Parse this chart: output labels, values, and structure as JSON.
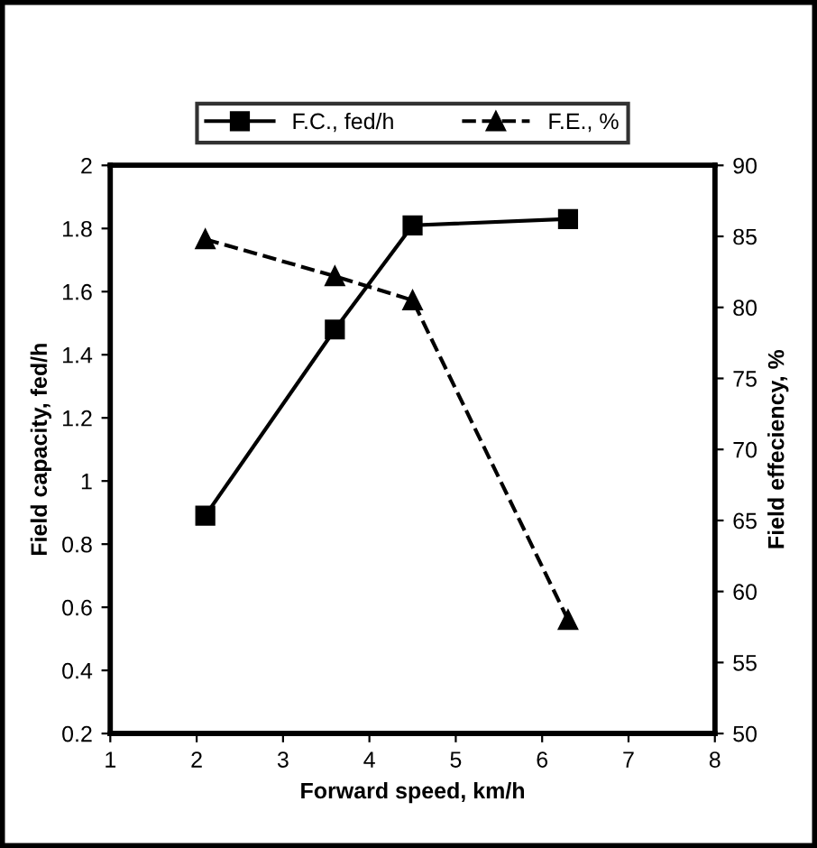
{
  "chart_data": {
    "type": "line",
    "xlabel": "Forward speed, km/h",
    "ylabel": "Field capacity, fed/h",
    "y2label": "Field effeciency, %",
    "x": [
      2.1,
      3.6,
      4.5,
      6.3
    ],
    "series": [
      {
        "name": "F.C., fed/h",
        "color": "#000000",
        "values": [
          0.89,
          1.48,
          1.81,
          1.83
        ],
        "marker": "square",
        "line_style": "solid"
      },
      {
        "name": "F.E., %",
        "color": "#000000",
        "values": [
          84.8,
          82.2,
          80.5,
          58.0
        ],
        "marker": "triangle",
        "line_style": "dashed",
        "axis": "y2"
      }
    ],
    "xlim": [
      1,
      8
    ],
    "xticks": [
      1,
      2,
      3,
      4,
      5,
      6,
      7,
      8
    ],
    "ylim": [
      0.2,
      2
    ],
    "yticks": [
      0.2,
      0.4,
      0.6,
      0.8,
      1,
      1.2,
      1.4,
      1.6,
      1.8,
      2
    ],
    "y2lim": [
      50,
      90
    ],
    "y2ticks": [
      50,
      55,
      60,
      65,
      70,
      75,
      80,
      85,
      90
    ],
    "grid": false,
    "legend": "top"
  }
}
